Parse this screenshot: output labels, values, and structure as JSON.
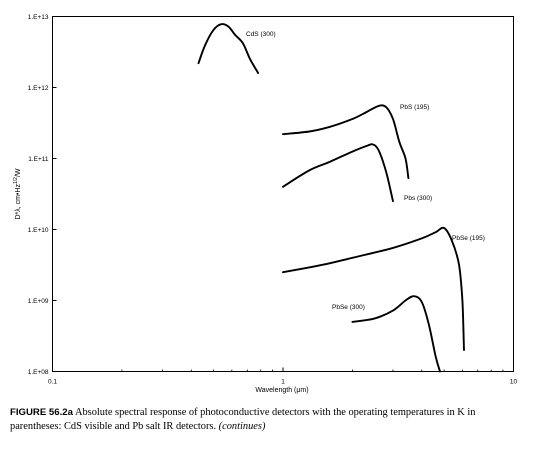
{
  "chart_data": {
    "type": "line",
    "title": "",
    "xlabel": "Wavelength (μm)",
    "ylabel": "D*λ, cm•Hz^1/2/W",
    "xscale": "log",
    "yscale": "log",
    "xlim": [
      0.1,
      10
    ],
    "ylim": [
      100000000.0,
      10000000000000.0
    ],
    "grid": false,
    "x_ticks": [
      "0.1",
      "1",
      "10"
    ],
    "x_tick_values": [
      0.1,
      1,
      10
    ],
    "y_ticks": [
      "1.E+08",
      "1.E+09",
      "1.E+10",
      "1.E+11",
      "1.E+12",
      "1.E+13"
    ],
    "y_tick_values": [
      100000000.0,
      1000000000.0,
      10000000000.0,
      100000000000.0,
      1000000000000.0,
      10000000000000.0
    ],
    "series": [
      {
        "name": "CdS (300)",
        "x": [
          0.43,
          0.46,
          0.5,
          0.54,
          0.58,
          0.62,
          0.67,
          0.72,
          0.78
        ],
        "y": [
          2200000000000.0,
          4000000000000.0,
          6500000000000.0,
          7800000000000.0,
          7200000000000.0,
          5500000000000.0,
          4200000000000.0,
          2500000000000.0,
          1600000000000.0
        ]
      },
      {
        "name": "PbS (195)",
        "x": [
          1.0,
          1.3,
          1.6,
          2.0,
          2.3,
          2.6,
          2.8,
          3.0,
          3.2,
          3.4,
          3.5
        ],
        "y": [
          220000000000.0,
          240000000000.0,
          280000000000.0,
          360000000000.0,
          450000000000.0,
          550000000000.0,
          530000000000.0,
          360000000000.0,
          170000000000.0,
          100000000000.0,
          53000000000.0
        ]
      },
      {
        "name": "Pbs (300)",
        "x": [
          1.0,
          1.3,
          1.6,
          2.0,
          2.3,
          2.45,
          2.6,
          2.8,
          3.0
        ],
        "y": [
          40000000000.0,
          68000000000.0,
          90000000000.0,
          125000000000.0,
          150000000000.0,
          158000000000.0,
          130000000000.0,
          65000000000.0,
          25000000000.0
        ]
      },
      {
        "name": "PbSe (195)",
        "x": [
          1.0,
          1.5,
          2.0,
          3.0,
          4.0,
          4.6,
          5.0,
          5.4,
          5.8,
          6.0,
          6.1
        ],
        "y": [
          2500000000.0,
          3200000000.0,
          4000000000.0,
          5500000000.0,
          7500000000.0,
          9200000000.0,
          10500000000.0,
          7000000000.0,
          3200000000.0,
          1000000000.0,
          200000000.0
        ]
      },
      {
        "name": "PbSe (300)",
        "x": [
          2.0,
          2.5,
          3.0,
          3.4,
          3.7,
          4.0,
          4.3,
          4.6,
          4.8
        ],
        "y": [
          500000000.0,
          560000000.0,
          720000000.0,
          1000000000.0,
          1150000000.0,
          950000000.0,
          450000000.0,
          160000000.0,
          100000000.0
        ]
      }
    ]
  },
  "caption": {
    "figure": "FIGURE 56.2a",
    "text": " Absolute spectral response of photoconductive detectors with the operating temperatures in K in parentheses: CdS visible and Pb salt IR detectors. ",
    "continues": "(continues)"
  }
}
